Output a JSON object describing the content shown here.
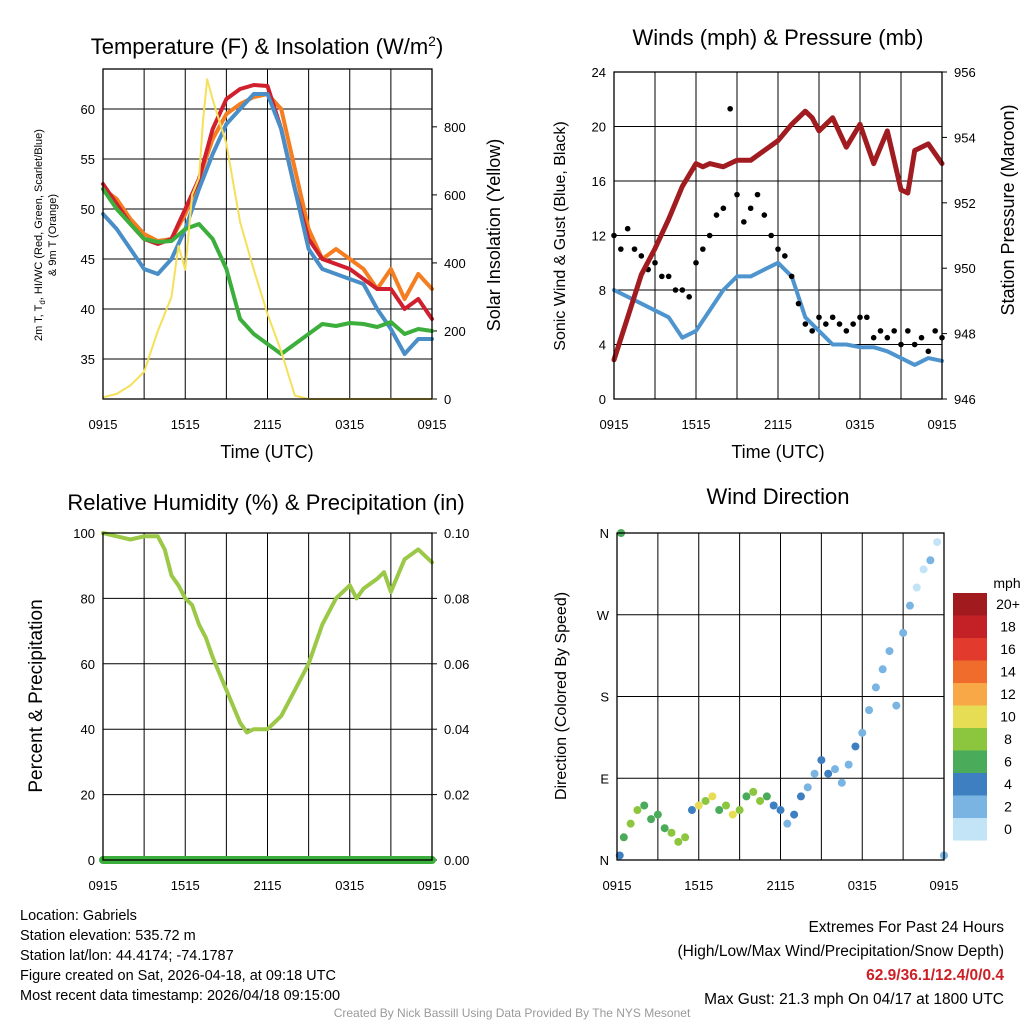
{
  "chart_data": [
    {
      "type": "line",
      "title": "Temperature (F) & Insolation (W/m",
      "title_sup": "2",
      "title_close": ")",
      "xlabel": "Time (UTC)",
      "ylabel_line1": "2m T, T",
      "ylabel_sub": "d",
      "ylabel_line1b": ", HI/WC (Red, Green, Scarlet/Blue)",
      "ylabel_line2": "& 9m T (Orange)",
      "ylabel_right": "Solar Insolation (Yellow)",
      "x_ticks": [
        "0915",
        "1515",
        "2115",
        "0315",
        "0915"
      ],
      "x_range": [
        0,
        24
      ],
      "ylim": [
        31,
        64
      ],
      "y_ticks": [
        35,
        40,
        45,
        50,
        55,
        60
      ],
      "y2lim": [
        0,
        970
      ],
      "y2_ticks": [
        0,
        200,
        400,
        600,
        800
      ],
      "grid": true,
      "series": [
        {
          "name": "9m T",
          "color": "#f47e20",
          "axis": "left",
          "x": [
            0,
            1,
            2,
            3,
            4,
            5,
            6,
            7,
            8,
            9,
            10,
            11,
            12,
            13,
            14,
            15,
            16,
            17,
            18,
            19,
            20,
            21,
            22,
            23,
            24
          ],
          "y": [
            52,
            51,
            49,
            47.5,
            46.8,
            47,
            49.5,
            53,
            57,
            59.5,
            60.5,
            61.2,
            61.5,
            60,
            54,
            48,
            45,
            46,
            45,
            44,
            42,
            44,
            41,
            43.5,
            42
          ]
        },
        {
          "name": "2m T",
          "color": "#d0202e",
          "axis": "left",
          "x": [
            0,
            1,
            2,
            3,
            4,
            5,
            6,
            7,
            8,
            9,
            10,
            11,
            12,
            13,
            14,
            15,
            16,
            17,
            18,
            19,
            20,
            21,
            22,
            23,
            24
          ],
          "y": [
            52.5,
            50.5,
            48.5,
            47,
            46.5,
            47,
            50,
            53,
            58,
            61,
            62,
            62.4,
            62.3,
            58,
            52,
            47,
            45,
            44.5,
            44,
            43,
            42,
            42,
            40,
            41,
            39
          ]
        },
        {
          "name": "HI/WC",
          "color": "#4a8ec8",
          "axis": "left",
          "x": [
            0,
            1,
            2,
            3,
            4,
            5,
            6,
            7,
            8,
            9,
            10,
            11,
            12,
            13,
            14,
            15,
            16,
            17,
            18,
            19,
            20,
            21,
            22,
            23,
            24
          ],
          "y": [
            49.5,
            48,
            46,
            44,
            43.5,
            45,
            48,
            52,
            55.5,
            58.5,
            60,
            61.5,
            61.5,
            58,
            52,
            46,
            44,
            43.5,
            43,
            42.5,
            40,
            38,
            35.5,
            37,
            37
          ]
        },
        {
          "name": "Td",
          "color": "#3cae3c",
          "axis": "left",
          "x": [
            0,
            1,
            2,
            3,
            4,
            5,
            6,
            7,
            8,
            9,
            10,
            11,
            12,
            13,
            14,
            15,
            16,
            17,
            18,
            19,
            20,
            21,
            22,
            23,
            24
          ],
          "y": [
            52,
            50,
            48.5,
            47,
            46.7,
            46.8,
            48,
            48.5,
            47,
            44,
            39,
            37.5,
            36.5,
            35.5,
            36.5,
            37.5,
            38.5,
            38.3,
            38.6,
            38.5,
            38.2,
            38.7,
            37.5,
            38,
            37.8
          ]
        },
        {
          "name": "Solar Insolation",
          "color": "#f5e05a",
          "axis": "right",
          "x": [
            0,
            1,
            2,
            3,
            4,
            5,
            5.5,
            6,
            6.5,
            7,
            7.3,
            7.6,
            8,
            9,
            10,
            11,
            12,
            13,
            14,
            15,
            16,
            17,
            18,
            19,
            20,
            21,
            22,
            23,
            24
          ],
          "y": [
            5,
            15,
            40,
            80,
            200,
            300,
            450,
            380,
            600,
            650,
            820,
            940,
            880,
            750,
            520,
            380,
            250,
            140,
            10,
            0,
            0,
            0,
            0,
            0,
            0,
            0,
            0,
            0,
            0
          ]
        }
      ]
    },
    {
      "type": "line",
      "title": "Winds (mph) & Pressure (mb)",
      "xlabel": "Time (UTC)",
      "ylabel": "Sonic Wind & Gust (Blue, Black)",
      "ylabel_right": "Station Pressure (Maroon)",
      "x_ticks": [
        "0915",
        "1515",
        "2115",
        "0315",
        "0915"
      ],
      "x_range": [
        0,
        24
      ],
      "ylim": [
        0,
        24
      ],
      "y_ticks": [
        0,
        4,
        8,
        12,
        16,
        20,
        24
      ],
      "y2lim": [
        946,
        956
      ],
      "y2_ticks": [
        946,
        948,
        950,
        952,
        954,
        956
      ],
      "grid": true,
      "series": [
        {
          "name": "Sonic Wind",
          "color": "#4e94cf",
          "axis": "left",
          "x": [
            0,
            1,
            2,
            3,
            4,
            5,
            6,
            7,
            8,
            9,
            10,
            11,
            12,
            13,
            14,
            15,
            16,
            17,
            18,
            19,
            20,
            21,
            22,
            23,
            24
          ],
          "y": [
            8,
            7.5,
            7,
            6.5,
            6,
            4.5,
            5,
            6.5,
            8,
            9,
            9,
            9.5,
            10,
            9,
            6,
            5,
            4,
            4,
            3.8,
            3.8,
            3.5,
            3,
            2.5,
            3,
            2.8
          ]
        },
        {
          "name": "Gust",
          "color": "#000000",
          "axis": "left",
          "style": "dots",
          "x": [
            0,
            0.5,
            1,
            1.5,
            2,
            2.5,
            3,
            3.5,
            4,
            4.5,
            5,
            5.5,
            6,
            6.5,
            7,
            7.5,
            8,
            8.5,
            9,
            9.5,
            10,
            10.5,
            11,
            11.5,
            12,
            12.5,
            13,
            13.5,
            14,
            14.5,
            15,
            15.5,
            16,
            16.5,
            17,
            17.5,
            18,
            18.5,
            19,
            19.5,
            20,
            20.5,
            21,
            21.5,
            22,
            22.5,
            23,
            23.5,
            24
          ],
          "y": [
            12,
            11,
            12.5,
            11,
            10.5,
            9.5,
            10,
            9,
            9,
            8,
            8,
            7.5,
            10,
            11,
            12,
            13.5,
            14,
            21.3,
            15,
            13,
            14,
            15,
            13.5,
            12,
            11,
            10.5,
            9,
            7,
            5.5,
            5,
            6,
            5.5,
            6,
            5.5,
            5,
            5.5,
            6,
            6,
            4.5,
            5,
            4.5,
            5,
            4,
            5,
            4,
            4.5,
            3.5,
            5,
            4.5
          ]
        },
        {
          "name": "Station Pressure",
          "color": "#a11c20",
          "axis": "right",
          "x": [
            0,
            1,
            2,
            3,
            4,
            5,
            6,
            6.5,
            7,
            8,
            9,
            10,
            11,
            12,
            13,
            14,
            14.5,
            15,
            16,
            17,
            18,
            18.5,
            19,
            20,
            21,
            21.5,
            22,
            23,
            24
          ],
          "y": [
            947.2,
            948.5,
            949.8,
            950.6,
            951.5,
            952.5,
            953.2,
            953.1,
            953.2,
            953.1,
            953.3,
            953.3,
            953.6,
            953.9,
            954.4,
            954.8,
            954.6,
            954.2,
            954.6,
            953.7,
            954.4,
            953.8,
            953.2,
            954.2,
            952.4,
            952.3,
            953.6,
            953.8,
            953.2
          ]
        }
      ]
    },
    {
      "type": "line",
      "title": "Relative Humidity (%) & Precipitation (in)",
      "ylabel": "Percent & Precipitation",
      "x_ticks": [
        "0915",
        "1515",
        "2115",
        "0315",
        "0915"
      ],
      "x_range": [
        0,
        24
      ],
      "ylim": [
        0,
        100
      ],
      "y_ticks": [
        0,
        20,
        40,
        60,
        80,
        100
      ],
      "y2lim": [
        0,
        0.1
      ],
      "y2_ticks": [
        "0.00",
        "0.02",
        "0.04",
        "0.06",
        "0.08",
        "0.10"
      ],
      "grid": true,
      "series": [
        {
          "name": "Relative Humidity",
          "color": "#9bc847",
          "axis": "left",
          "x": [
            0,
            1,
            2,
            3,
            4,
            4.5,
            5,
            5.5,
            6,
            6.5,
            7,
            7.5,
            8,
            9,
            10,
            10.5,
            11,
            11.5,
            12,
            13,
            14,
            15,
            16,
            17,
            18,
            18.5,
            19,
            20,
            20.5,
            21,
            22,
            23,
            24
          ],
          "y": [
            100,
            99,
            98,
            99,
            99,
            95,
            87,
            84,
            80,
            78,
            72,
            68,
            62,
            52,
            42,
            39,
            40,
            40,
            40,
            44,
            52,
            60,
            72,
            80,
            84,
            80,
            83,
            86,
            88,
            82,
            92,
            95,
            91
          ]
        },
        {
          "name": "Precipitation",
          "color": "#3cae3c",
          "axis": "right",
          "x": [
            0,
            24
          ],
          "y": [
            0,
            0
          ]
        }
      ]
    },
    {
      "type": "scatter",
      "title": "Wind Direction",
      "ylabel": "Direction (Colored By Speed)",
      "x_ticks": [
        "0915",
        "1515",
        "2115",
        "0315",
        "0915"
      ],
      "x_range": [
        0,
        24
      ],
      "y_ticks": [
        "N",
        "E",
        "S",
        "W",
        "N"
      ],
      "ylim": [
        0,
        360
      ],
      "grid": true,
      "legend_title": "mph",
      "legend_labels": [
        "20+",
        "18",
        "16",
        "14",
        "12",
        "10",
        "8",
        "6",
        "4",
        "2",
        "0"
      ],
      "legend_colors": [
        "#a01a1e",
        "#c42127",
        "#e23a2c",
        "#f06c2c",
        "#f9a848",
        "#e7dd55",
        "#8cc63f",
        "#4aab5b",
        "#3e7fc1",
        "#79b4e2",
        "#c3e3f6"
      ],
      "points": {
        "x": [
          0.2,
          0.5,
          1,
          1.5,
          2,
          2.5,
          3,
          3.5,
          4,
          4.5,
          5,
          5.5,
          6,
          6.5,
          7,
          7.5,
          8,
          8.5,
          9,
          9.5,
          10,
          10.5,
          11,
          11.5,
          12,
          12.5,
          13,
          13.5,
          14,
          14.5,
          15,
          15.5,
          16,
          16.5,
          17,
          17.5,
          18,
          18.5,
          19,
          19.5,
          20,
          20.5,
          21,
          21.5,
          22,
          22.5,
          23,
          23.5,
          24,
          0.3
        ],
        "y": [
          5,
          25,
          40,
          55,
          60,
          45,
          50,
          35,
          30,
          20,
          25,
          55,
          60,
          65,
          70,
          55,
          60,
          50,
          55,
          70,
          75,
          65,
          70,
          60,
          55,
          40,
          50,
          70,
          80,
          95,
          110,
          95,
          100,
          85,
          105,
          125,
          140,
          165,
          190,
          210,
          230,
          170,
          250,
          280,
          300,
          320,
          330,
          350,
          5,
          360
        ],
        "speed": [
          4,
          6,
          8,
          8,
          7,
          6,
          6,
          7,
          8,
          9,
          8,
          5,
          10,
          9,
          10,
          7,
          9,
          11,
          8,
          7,
          9,
          8,
          6,
          5,
          4,
          3,
          5,
          4,
          3,
          3,
          4,
          4,
          2,
          3,
          3,
          4,
          3,
          2,
          2,
          2,
          3,
          3,
          3,
          2,
          1,
          1,
          2,
          1,
          3,
          6
        ]
      }
    }
  ],
  "info": {
    "location": "Location: Gabriels",
    "elevation": "Station elevation: 535.72 m",
    "latlon": "Station lat/lon: 44.4174; -74.1787",
    "created": "Figure created on Sat, 2026-04-18, at 09:18 UTC",
    "recent": "Most recent data timestamp: 2026/04/18 09:15:00"
  },
  "extremes": {
    "title": "Extremes For Past 24 Hours",
    "subtitle": "(High/Low/Max Wind/Precipitation/Snow Depth)",
    "values": "62.9/36.1/12.4/0/0.4",
    "max_gust": "Max Gust: 21.3 mph On 04/17 at 1800 UTC"
  },
  "credit": "Created By Nick Bassill Using Data Provided By The NYS Mesonet"
}
